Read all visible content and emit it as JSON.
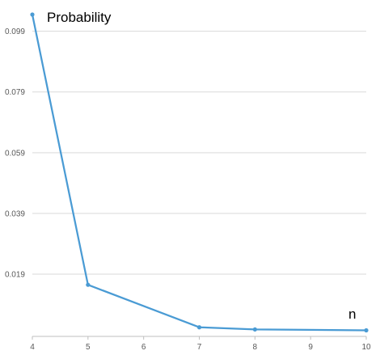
{
  "chart_data": {
    "type": "line",
    "xlabel": "n",
    "ylabel": "Probability",
    "x": [
      4,
      5,
      7,
      8,
      10
    ],
    "series": [
      {
        "values": [
          0.1045,
          0.0155,
          0.0015,
          0.0008,
          0.0005
        ]
      }
    ],
    "xlim": [
      4,
      10
    ],
    "ylim": [
      -0.0015,
      0.1045
    ],
    "x_ticks": [
      "4",
      "5",
      "6",
      "7",
      "8",
      "9",
      "10"
    ],
    "y_ticks": [
      "0.019",
      "0.039",
      "0.059",
      "0.079",
      "0.099"
    ],
    "grid": "horizontal",
    "line_color": "#4a9bd4"
  }
}
